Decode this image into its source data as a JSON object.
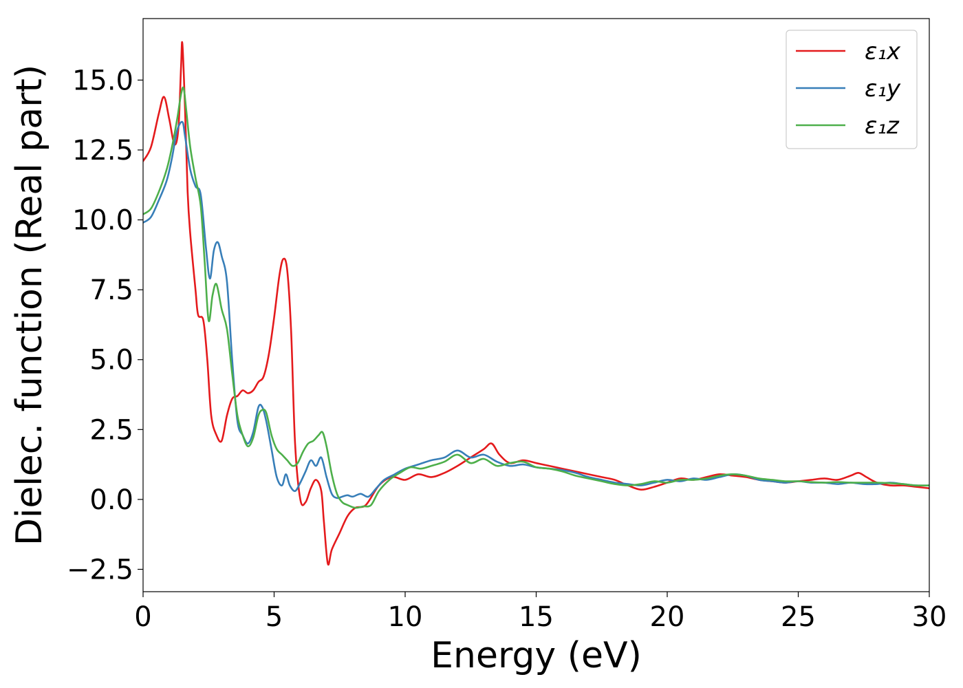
{
  "chart_data": {
    "type": "line",
    "xlabel": "Energy (eV)",
    "ylabel": "Dielec. function (Real part)",
    "xlim": [
      0,
      30
    ],
    "ylim": [
      -3.3,
      17.2
    ],
    "xticks": [
      0,
      5,
      10,
      15,
      20,
      25,
      30
    ],
    "xtick_labels": [
      "0",
      "5",
      "10",
      "15",
      "20",
      "25",
      "30"
    ],
    "yticks": [
      -2.5,
      0.0,
      2.5,
      5.0,
      7.5,
      10.0,
      12.5,
      15.0
    ],
    "ytick_labels": [
      "−2.5",
      "0.0",
      "2.5",
      "5.0",
      "7.5",
      "10.0",
      "12.5",
      "15.0"
    ],
    "grid": false,
    "legend_position": "top-right",
    "series": [
      {
        "name": "ε₁x",
        "color": "#e41a1c",
        "x": [
          0,
          0.3,
          0.6,
          0.8,
          1.0,
          1.2,
          1.35,
          1.45,
          1.5,
          1.6,
          1.7,
          1.8,
          2.0,
          2.1,
          2.3,
          2.45,
          2.6,
          2.8,
          3.0,
          3.2,
          3.4,
          3.6,
          3.8,
          4.0,
          4.2,
          4.4,
          4.6,
          4.8,
          5.0,
          5.2,
          5.35,
          5.5,
          5.65,
          5.8,
          6.0,
          6.2,
          6.4,
          6.6,
          6.8,
          6.9,
          7.05,
          7.2,
          7.5,
          7.8,
          8.1,
          8.5,
          9.0,
          9.5,
          10.0,
          10.5,
          11.0,
          11.5,
          12.0,
          12.5,
          13.0,
          13.3,
          13.6,
          14.0,
          14.5,
          15.0,
          15.5,
          16.0,
          16.5,
          17.0,
          17.5,
          18.0,
          18.5,
          19.0,
          19.5,
          20.0,
          20.5,
          21.0,
          21.5,
          22.0,
          22.5,
          23.0,
          23.5,
          24.0,
          24.5,
          25.0,
          25.5,
          26.0,
          26.5,
          27.0,
          27.3,
          27.6,
          28.0,
          28.5,
          29.0,
          29.5,
          30.0
        ],
        "y": [
          12.1,
          12.6,
          13.8,
          14.4,
          13.6,
          12.7,
          13.3,
          15.5,
          16.3,
          14.0,
          11.0,
          9.5,
          7.5,
          6.6,
          6.4,
          5.0,
          3.0,
          2.3,
          2.1,
          3.0,
          3.6,
          3.7,
          3.9,
          3.8,
          3.9,
          4.2,
          4.4,
          5.2,
          6.5,
          8.0,
          8.6,
          8.2,
          6.0,
          2.0,
          0.0,
          -0.1,
          0.4,
          0.7,
          0.3,
          -0.8,
          -2.3,
          -1.8,
          -1.2,
          -0.6,
          -0.3,
          -0.2,
          0.5,
          0.8,
          0.7,
          0.9,
          0.8,
          0.95,
          1.2,
          1.5,
          1.8,
          2.0,
          1.6,
          1.3,
          1.4,
          1.3,
          1.2,
          1.1,
          1.0,
          0.9,
          0.8,
          0.7,
          0.5,
          0.35,
          0.45,
          0.6,
          0.75,
          0.7,
          0.8,
          0.9,
          0.85,
          0.8,
          0.7,
          0.65,
          0.6,
          0.65,
          0.7,
          0.75,
          0.7,
          0.85,
          0.95,
          0.8,
          0.6,
          0.5,
          0.5,
          0.45,
          0.4
        ]
      },
      {
        "name": "ε₁y",
        "color": "#377eb8",
        "x": [
          0,
          0.3,
          0.6,
          0.9,
          1.1,
          1.3,
          1.5,
          1.6,
          1.8,
          2.0,
          2.2,
          2.4,
          2.55,
          2.7,
          2.85,
          3.0,
          3.2,
          3.4,
          3.6,
          3.8,
          4.0,
          4.2,
          4.4,
          4.55,
          4.7,
          4.9,
          5.1,
          5.3,
          5.45,
          5.6,
          5.8,
          6.0,
          6.2,
          6.4,
          6.6,
          6.8,
          7.0,
          7.2,
          7.4,
          7.6,
          7.8,
          8.0,
          8.3,
          8.6,
          8.9,
          9.2,
          9.6,
          10.0,
          10.5,
          11.0,
          11.5,
          12.0,
          12.5,
          13.0,
          13.5,
          14.0,
          14.5,
          15.0,
          15.5,
          16.0,
          16.5,
          17.0,
          17.5,
          18.0,
          18.5,
          19.0,
          19.5,
          20.0,
          20.5,
          21.0,
          21.5,
          22.0,
          22.5,
          23.0,
          23.5,
          24.0,
          24.5,
          25.0,
          25.5,
          26.0,
          26.5,
          27.0,
          27.5,
          28.0,
          28.5,
          29.0,
          29.5,
          30.0
        ],
        "y": [
          9.9,
          10.1,
          10.7,
          11.4,
          12.2,
          13.2,
          13.5,
          13.0,
          11.8,
          11.2,
          10.9,
          9.0,
          7.9,
          8.9,
          9.2,
          8.7,
          7.8,
          5.0,
          2.8,
          2.3,
          2.0,
          2.4,
          3.3,
          3.3,
          2.8,
          1.8,
          0.8,
          0.5,
          0.9,
          0.5,
          0.3,
          0.6,
          1.0,
          1.4,
          1.2,
          1.5,
          0.8,
          0.2,
          0.05,
          0.1,
          0.15,
          0.1,
          0.2,
          0.1,
          0.4,
          0.7,
          0.9,
          1.1,
          1.25,
          1.4,
          1.5,
          1.75,
          1.5,
          1.6,
          1.35,
          1.2,
          1.25,
          1.15,
          1.1,
          1.05,
          0.95,
          0.8,
          0.7,
          0.6,
          0.55,
          0.5,
          0.6,
          0.7,
          0.65,
          0.75,
          0.7,
          0.8,
          0.9,
          0.85,
          0.7,
          0.65,
          0.6,
          0.65,
          0.6,
          0.6,
          0.55,
          0.6,
          0.55,
          0.55,
          0.6,
          0.55,
          0.5,
          0.5
        ]
      },
      {
        "name": "ε₁z",
        "color": "#4daf4a",
        "x": [
          0,
          0.3,
          0.6,
          0.9,
          1.1,
          1.3,
          1.45,
          1.55,
          1.65,
          1.8,
          2.0,
          2.2,
          2.35,
          2.5,
          2.65,
          2.8,
          3.0,
          3.2,
          3.4,
          3.6,
          3.8,
          4.0,
          4.2,
          4.4,
          4.55,
          4.7,
          4.9,
          5.1,
          5.3,
          5.5,
          5.7,
          5.9,
          6.1,
          6.3,
          6.5,
          6.7,
          6.85,
          7.0,
          7.2,
          7.4,
          7.6,
          7.8,
          8.1,
          8.4,
          8.7,
          9.0,
          9.4,
          9.8,
          10.2,
          10.6,
          11.0,
          11.5,
          12.0,
          12.5,
          13.0,
          13.5,
          14.0,
          14.5,
          15.0,
          15.5,
          16.0,
          16.5,
          17.0,
          17.5,
          18.0,
          18.5,
          19.0,
          19.5,
          20.0,
          20.5,
          21.0,
          21.5,
          22.0,
          22.5,
          23.0,
          23.5,
          24.0,
          24.5,
          25.0,
          25.5,
          26.0,
          26.5,
          27.0,
          27.5,
          28.0,
          28.5,
          29.0,
          29.5,
          30.0
        ],
        "y": [
          10.2,
          10.4,
          11.0,
          11.8,
          12.6,
          13.6,
          14.5,
          14.7,
          13.9,
          12.6,
          11.5,
          10.5,
          8.5,
          6.4,
          7.3,
          7.7,
          6.8,
          6.1,
          4.5,
          3.0,
          2.3,
          1.9,
          2.2,
          3.0,
          3.2,
          3.1,
          2.3,
          1.8,
          1.6,
          1.4,
          1.2,
          1.3,
          1.7,
          2.0,
          2.1,
          2.3,
          2.4,
          1.9,
          0.9,
          0.2,
          -0.1,
          -0.2,
          -0.3,
          -0.25,
          -0.2,
          0.3,
          0.7,
          0.95,
          1.15,
          1.1,
          1.2,
          1.35,
          1.6,
          1.3,
          1.45,
          1.2,
          1.3,
          1.35,
          1.15,
          1.1,
          1.0,
          0.85,
          0.75,
          0.65,
          0.55,
          0.5,
          0.55,
          0.65,
          0.6,
          0.7,
          0.7,
          0.75,
          0.85,
          0.9,
          0.85,
          0.75,
          0.7,
          0.65,
          0.65,
          0.62,
          0.6,
          0.62,
          0.6,
          0.6,
          0.6,
          0.58,
          0.55,
          0.5,
          0.5
        ]
      }
    ]
  }
}
